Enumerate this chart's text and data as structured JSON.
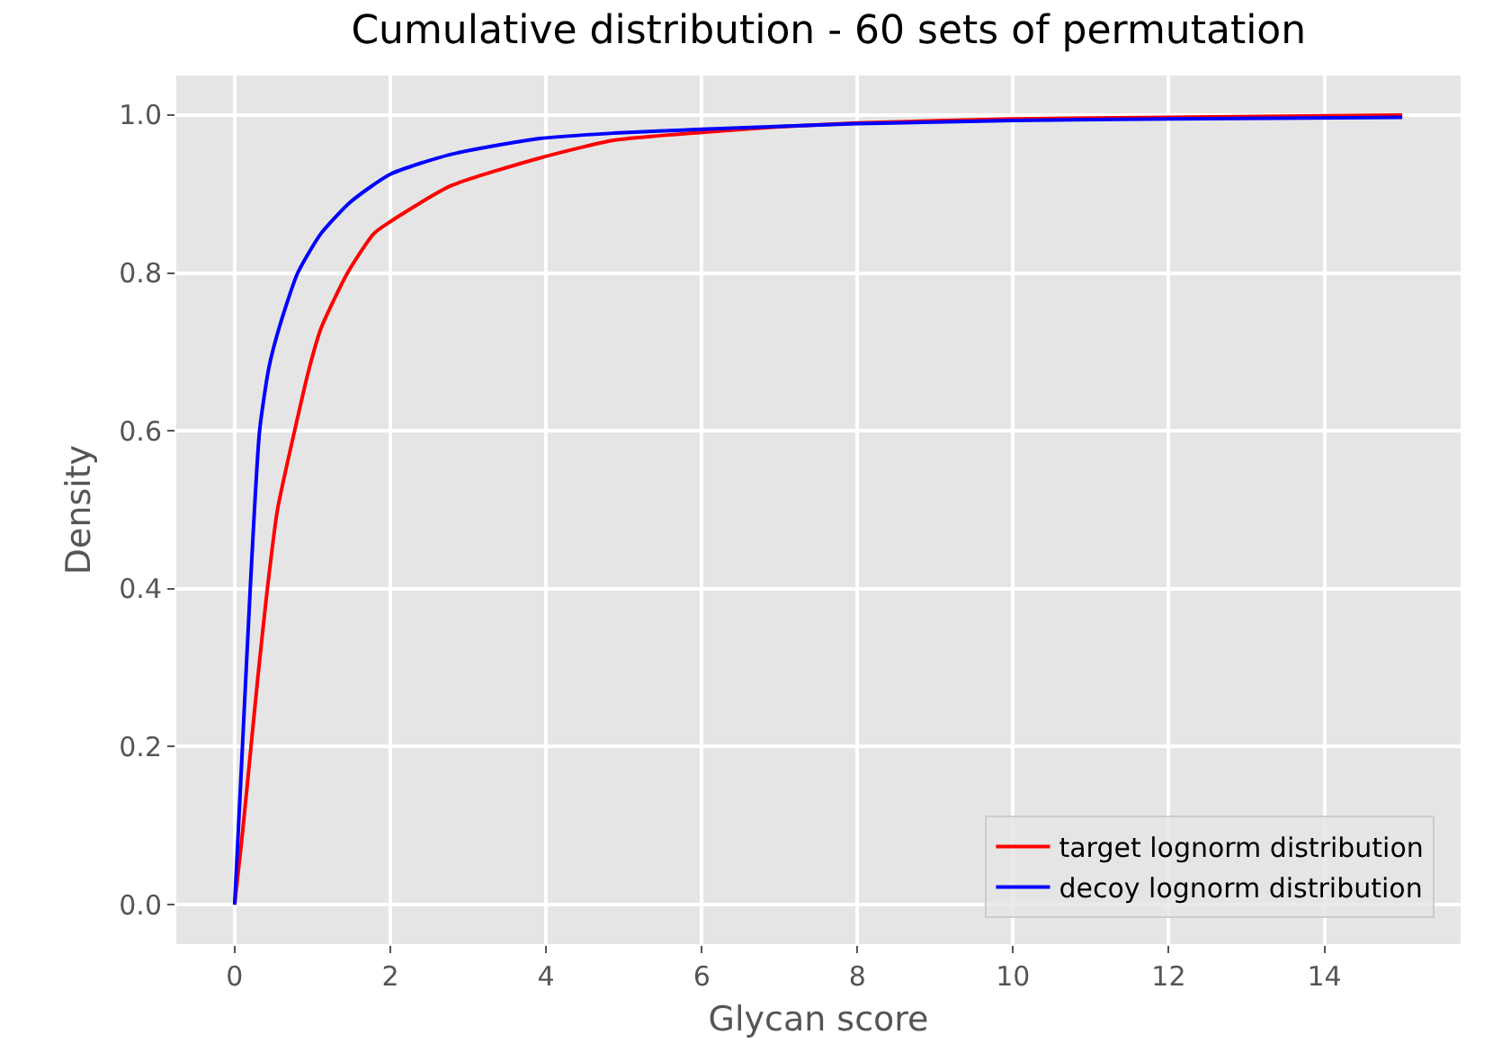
{
  "chart_data": {
    "type": "line",
    "title": "Cumulative distribution - 60 sets of permutation",
    "xlabel": "Glycan score",
    "ylabel": "Density",
    "xlim": [
      -0.75,
      15.75
    ],
    "xticks": [
      0,
      2,
      4,
      6,
      8,
      10,
      12,
      14
    ],
    "ylim": [
      -0.05,
      1.05
    ],
    "yticks": [
      {
        "value": 0,
        "label": "0.0"
      },
      {
        "value": 0.2,
        "label": "0.2"
      },
      {
        "value": 0.4,
        "label": "0.4"
      },
      {
        "value": 0.6,
        "label": "0.6"
      },
      {
        "value": 0.8,
        "label": "0.8"
      },
      {
        "value": 1,
        "label": "1.0"
      }
    ],
    "grid": true,
    "legend": "bottom right",
    "line_style": "solid",
    "series": [
      {
        "name": "target lognorm distribution",
        "color": "#ff0000",
        "x": [
          0,
          0.1,
          0.21,
          0.3,
          0.42,
          0.55,
          0.77,
          0.96,
          1.11,
          1.45,
          1.79,
          2.0,
          2.77,
          3.9,
          4.87,
          6,
          7,
          8,
          10,
          12,
          15
        ],
        "values": [
          0,
          0.09,
          0.2,
          0.29,
          0.4,
          0.5,
          0.6,
          0.68,
          0.73,
          0.8,
          0.85,
          0.865,
          0.91,
          0.945,
          0.968,
          0.978,
          0.985,
          0.99,
          0.995,
          0.997,
          1.0
        ]
      },
      {
        "name": "decoy lognorm distribution",
        "color": "#0000ff",
        "x": [
          0,
          0.05,
          0.1,
          0.2,
          0.32,
          0.44,
          0.57,
          0.81,
          1.11,
          1.49,
          2.0,
          2.77,
          3.9,
          4.87,
          6,
          8,
          10,
          12,
          15
        ],
        "values": [
          0,
          0.1,
          0.2,
          0.4,
          0.6,
          0.68,
          0.73,
          0.8,
          0.85,
          0.89,
          0.925,
          0.95,
          0.97,
          0.977,
          0.982,
          0.989,
          0.993,
          0.995,
          0.997
        ]
      }
    ]
  }
}
